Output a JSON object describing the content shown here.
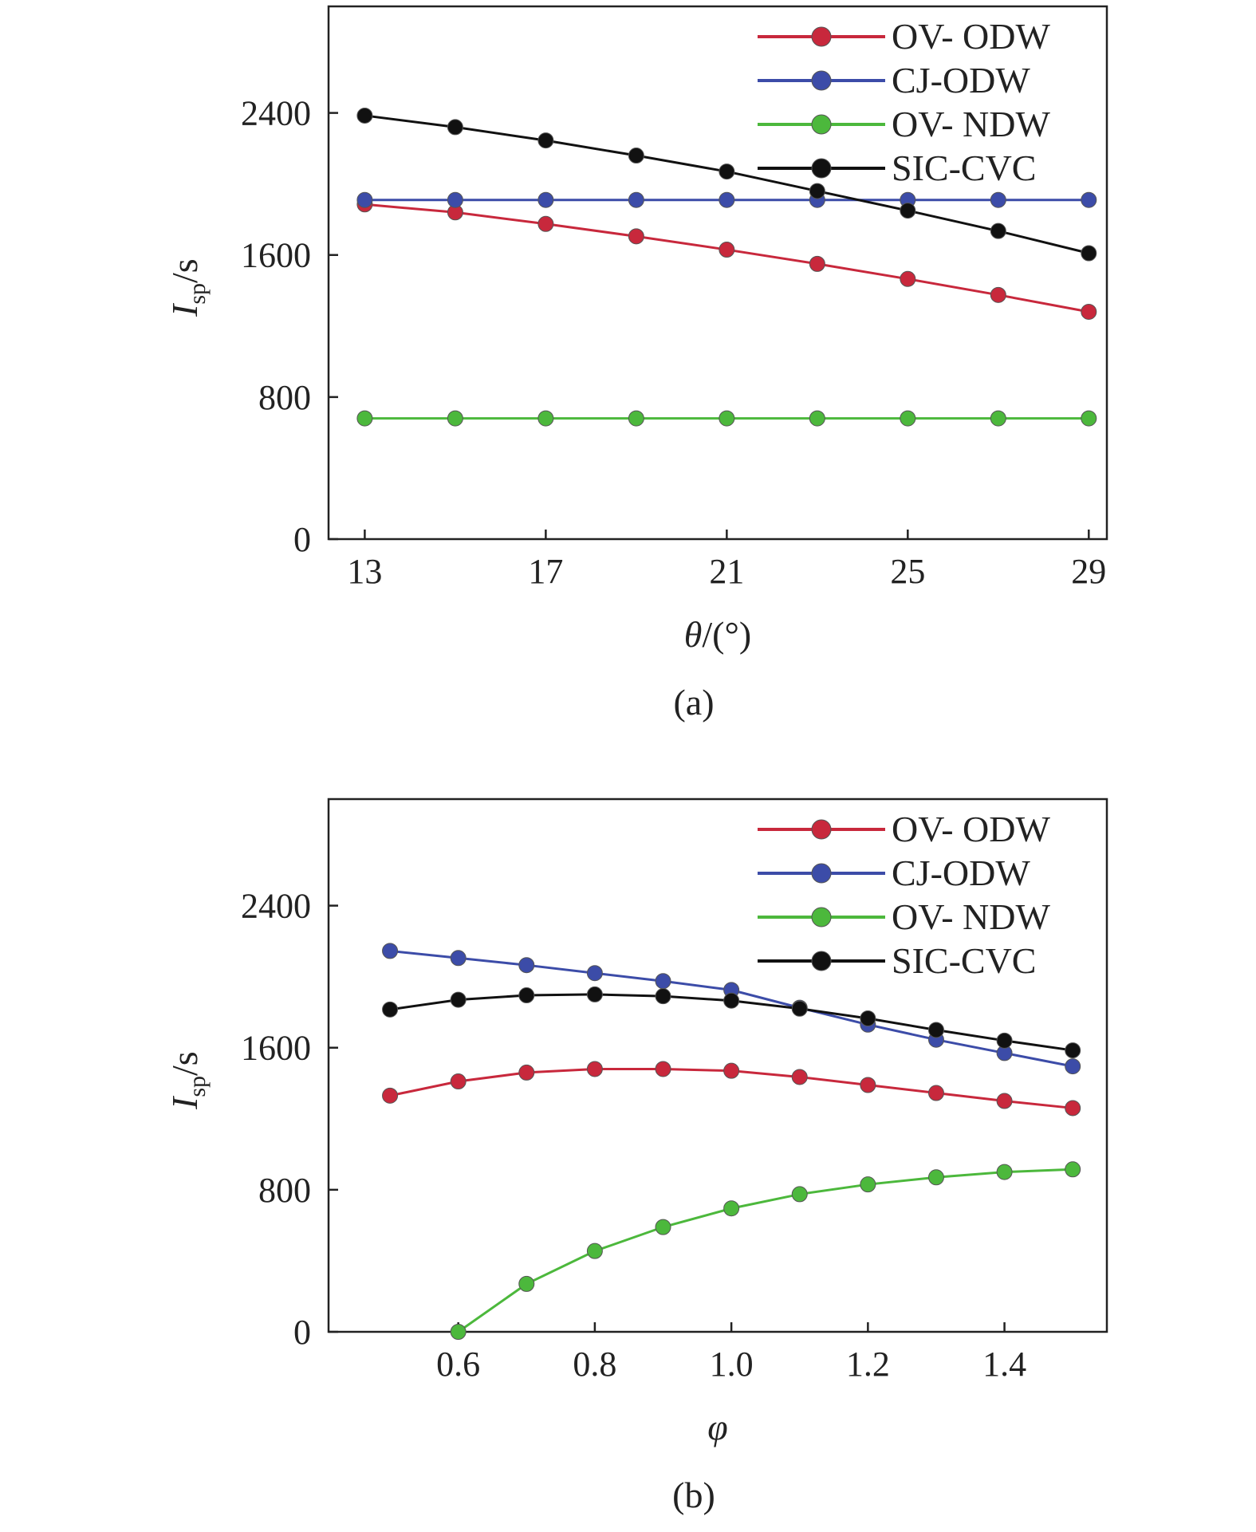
{
  "chart_data": [
    {
      "type": "line",
      "panel_label": "(a)",
      "ylabel_main": "I",
      "ylabel_sub": "sp",
      "ylabel_unit": "/s",
      "xlabel_main": "θ",
      "xlabel_unit": "/(°)",
      "xlim": [
        12.2,
        29.4
      ],
      "ylim": [
        0,
        3000
      ],
      "xticks": [
        13,
        17,
        21,
        25,
        29
      ],
      "xtick_labels": [
        "13",
        "17",
        "21",
        "25",
        "29"
      ],
      "yticks": [
        0,
        800,
        1600,
        2400
      ],
      "ytick_labels": [
        "0",
        "800",
        "1600",
        "2400"
      ],
      "x": [
        13,
        15,
        17,
        19,
        21,
        23,
        25,
        27,
        29
      ],
      "legend_position": "top-right",
      "series": [
        {
          "name": "OV- ODW",
          "color": "#c8283c",
          "values": [
            1885,
            1840,
            1775,
            1705,
            1630,
            1550,
            1465,
            1375,
            1280
          ]
        },
        {
          "name": "CJ-ODW",
          "color": "#3c4ca8",
          "values": [
            1910,
            1910,
            1910,
            1910,
            1910,
            1910,
            1910,
            1910,
            1910
          ]
        },
        {
          "name": "OV- NDW",
          "color": "#4cb83c",
          "values": [
            680,
            680,
            680,
            680,
            680,
            680,
            680,
            680,
            680
          ]
        },
        {
          "name": "SIC-CVC",
          "color": "#111111",
          "values": [
            2385,
            2320,
            2245,
            2160,
            2070,
            1960,
            1850,
            1735,
            1610
          ]
        }
      ]
    },
    {
      "type": "line",
      "panel_label": "(b)",
      "ylabel_main": "I",
      "ylabel_sub": "sp",
      "ylabel_unit": "/s",
      "xlabel_main": "φ",
      "xlabel_unit": "",
      "xlim": [
        0.41,
        1.55
      ],
      "ylim": [
        0,
        3000
      ],
      "xticks": [
        0.6,
        0.8,
        1.0,
        1.2,
        1.4
      ],
      "xtick_labels": [
        "0.6",
        "0.8",
        "1.0",
        "1.2",
        "1.4"
      ],
      "yticks": [
        0,
        800,
        1600,
        2400
      ],
      "ytick_labels": [
        "0",
        "800",
        "1600",
        "2400"
      ],
      "x": [
        0.5,
        0.6,
        0.7,
        0.8,
        0.9,
        1.0,
        1.1,
        1.2,
        1.3,
        1.4,
        1.5
      ],
      "legend_position": "top-right",
      "series": [
        {
          "name": "OV- ODW",
          "color": "#c8283c",
          "values": [
            1330,
            1410,
            1460,
            1480,
            1480,
            1470,
            1435,
            1390,
            1345,
            1300,
            1260
          ]
        },
        {
          "name": "CJ-ODW",
          "color": "#3c4ca8",
          "values": [
            2145,
            2105,
            2065,
            2020,
            1975,
            1925,
            1825,
            1730,
            1645,
            1570,
            1495
          ]
        },
        {
          "name": "OV- NDW",
          "color": "#4cb83c",
          "values": [
            null,
            0,
            270,
            455,
            590,
            695,
            775,
            830,
            870,
            900,
            915
          ]
        },
        {
          "name": "SIC-CVC",
          "color": "#111111",
          "values": [
            1815,
            1870,
            1895,
            1900,
            1890,
            1865,
            1820,
            1765,
            1700,
            1640,
            1585
          ]
        }
      ]
    }
  ]
}
